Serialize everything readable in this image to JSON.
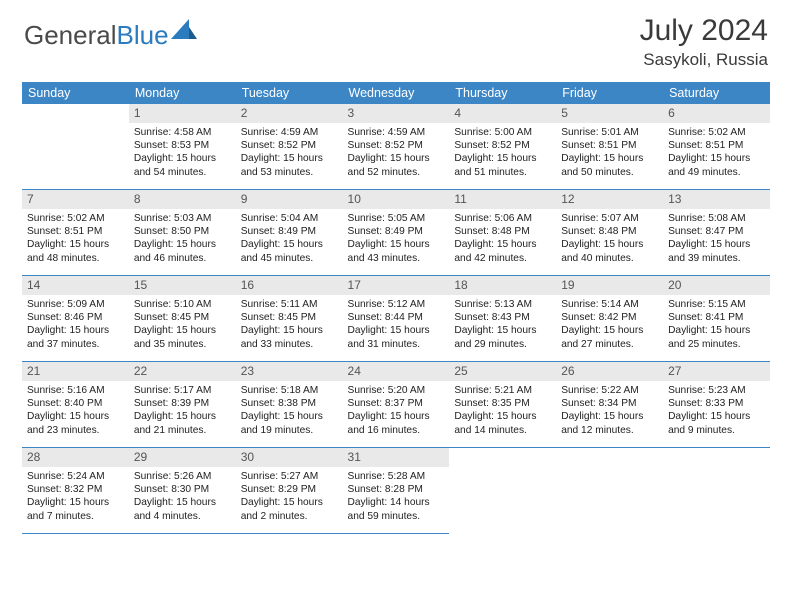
{
  "brand": {
    "g": "General",
    "b": "Blue"
  },
  "title": "July 2024",
  "location": "Sasykoli, Russia",
  "colors": {
    "header_bg": "#3d86c6",
    "header_text": "#ffffff",
    "daynum_bg": "#e9e9e9",
    "row_border": "#3d86c6",
    "text": "#222222",
    "brand_gray": "#4a4a4a",
    "brand_blue": "#2b7bbf"
  },
  "weekdays": [
    "Sunday",
    "Monday",
    "Tuesday",
    "Wednesday",
    "Thursday",
    "Friday",
    "Saturday"
  ],
  "calendar": {
    "start_weekday": 1,
    "days": [
      {
        "n": 1,
        "sr": "4:58 AM",
        "ss": "8:53 PM",
        "dl": "15 hours and 54 minutes."
      },
      {
        "n": 2,
        "sr": "4:59 AM",
        "ss": "8:52 PM",
        "dl": "15 hours and 53 minutes."
      },
      {
        "n": 3,
        "sr": "4:59 AM",
        "ss": "8:52 PM",
        "dl": "15 hours and 52 minutes."
      },
      {
        "n": 4,
        "sr": "5:00 AM",
        "ss": "8:52 PM",
        "dl": "15 hours and 51 minutes."
      },
      {
        "n": 5,
        "sr": "5:01 AM",
        "ss": "8:51 PM",
        "dl": "15 hours and 50 minutes."
      },
      {
        "n": 6,
        "sr": "5:02 AM",
        "ss": "8:51 PM",
        "dl": "15 hours and 49 minutes."
      },
      {
        "n": 7,
        "sr": "5:02 AM",
        "ss": "8:51 PM",
        "dl": "15 hours and 48 minutes."
      },
      {
        "n": 8,
        "sr": "5:03 AM",
        "ss": "8:50 PM",
        "dl": "15 hours and 46 minutes."
      },
      {
        "n": 9,
        "sr": "5:04 AM",
        "ss": "8:49 PM",
        "dl": "15 hours and 45 minutes."
      },
      {
        "n": 10,
        "sr": "5:05 AM",
        "ss": "8:49 PM",
        "dl": "15 hours and 43 minutes."
      },
      {
        "n": 11,
        "sr": "5:06 AM",
        "ss": "8:48 PM",
        "dl": "15 hours and 42 minutes."
      },
      {
        "n": 12,
        "sr": "5:07 AM",
        "ss": "8:48 PM",
        "dl": "15 hours and 40 minutes."
      },
      {
        "n": 13,
        "sr": "5:08 AM",
        "ss": "8:47 PM",
        "dl": "15 hours and 39 minutes."
      },
      {
        "n": 14,
        "sr": "5:09 AM",
        "ss": "8:46 PM",
        "dl": "15 hours and 37 minutes."
      },
      {
        "n": 15,
        "sr": "5:10 AM",
        "ss": "8:45 PM",
        "dl": "15 hours and 35 minutes."
      },
      {
        "n": 16,
        "sr": "5:11 AM",
        "ss": "8:45 PM",
        "dl": "15 hours and 33 minutes."
      },
      {
        "n": 17,
        "sr": "5:12 AM",
        "ss": "8:44 PM",
        "dl": "15 hours and 31 minutes."
      },
      {
        "n": 18,
        "sr": "5:13 AM",
        "ss": "8:43 PM",
        "dl": "15 hours and 29 minutes."
      },
      {
        "n": 19,
        "sr": "5:14 AM",
        "ss": "8:42 PM",
        "dl": "15 hours and 27 minutes."
      },
      {
        "n": 20,
        "sr": "5:15 AM",
        "ss": "8:41 PM",
        "dl": "15 hours and 25 minutes."
      },
      {
        "n": 21,
        "sr": "5:16 AM",
        "ss": "8:40 PM",
        "dl": "15 hours and 23 minutes."
      },
      {
        "n": 22,
        "sr": "5:17 AM",
        "ss": "8:39 PM",
        "dl": "15 hours and 21 minutes."
      },
      {
        "n": 23,
        "sr": "5:18 AM",
        "ss": "8:38 PM",
        "dl": "15 hours and 19 minutes."
      },
      {
        "n": 24,
        "sr": "5:20 AM",
        "ss": "8:37 PM",
        "dl": "15 hours and 16 minutes."
      },
      {
        "n": 25,
        "sr": "5:21 AM",
        "ss": "8:35 PM",
        "dl": "15 hours and 14 minutes."
      },
      {
        "n": 26,
        "sr": "5:22 AM",
        "ss": "8:34 PM",
        "dl": "15 hours and 12 minutes."
      },
      {
        "n": 27,
        "sr": "5:23 AM",
        "ss": "8:33 PM",
        "dl": "15 hours and 9 minutes."
      },
      {
        "n": 28,
        "sr": "5:24 AM",
        "ss": "8:32 PM",
        "dl": "15 hours and 7 minutes."
      },
      {
        "n": 29,
        "sr": "5:26 AM",
        "ss": "8:30 PM",
        "dl": "15 hours and 4 minutes."
      },
      {
        "n": 30,
        "sr": "5:27 AM",
        "ss": "8:29 PM",
        "dl": "15 hours and 2 minutes."
      },
      {
        "n": 31,
        "sr": "5:28 AM",
        "ss": "8:28 PM",
        "dl": "14 hours and 59 minutes."
      }
    ]
  },
  "labels": {
    "sunrise": "Sunrise:",
    "sunset": "Sunset:",
    "daylight": "Daylight:"
  }
}
